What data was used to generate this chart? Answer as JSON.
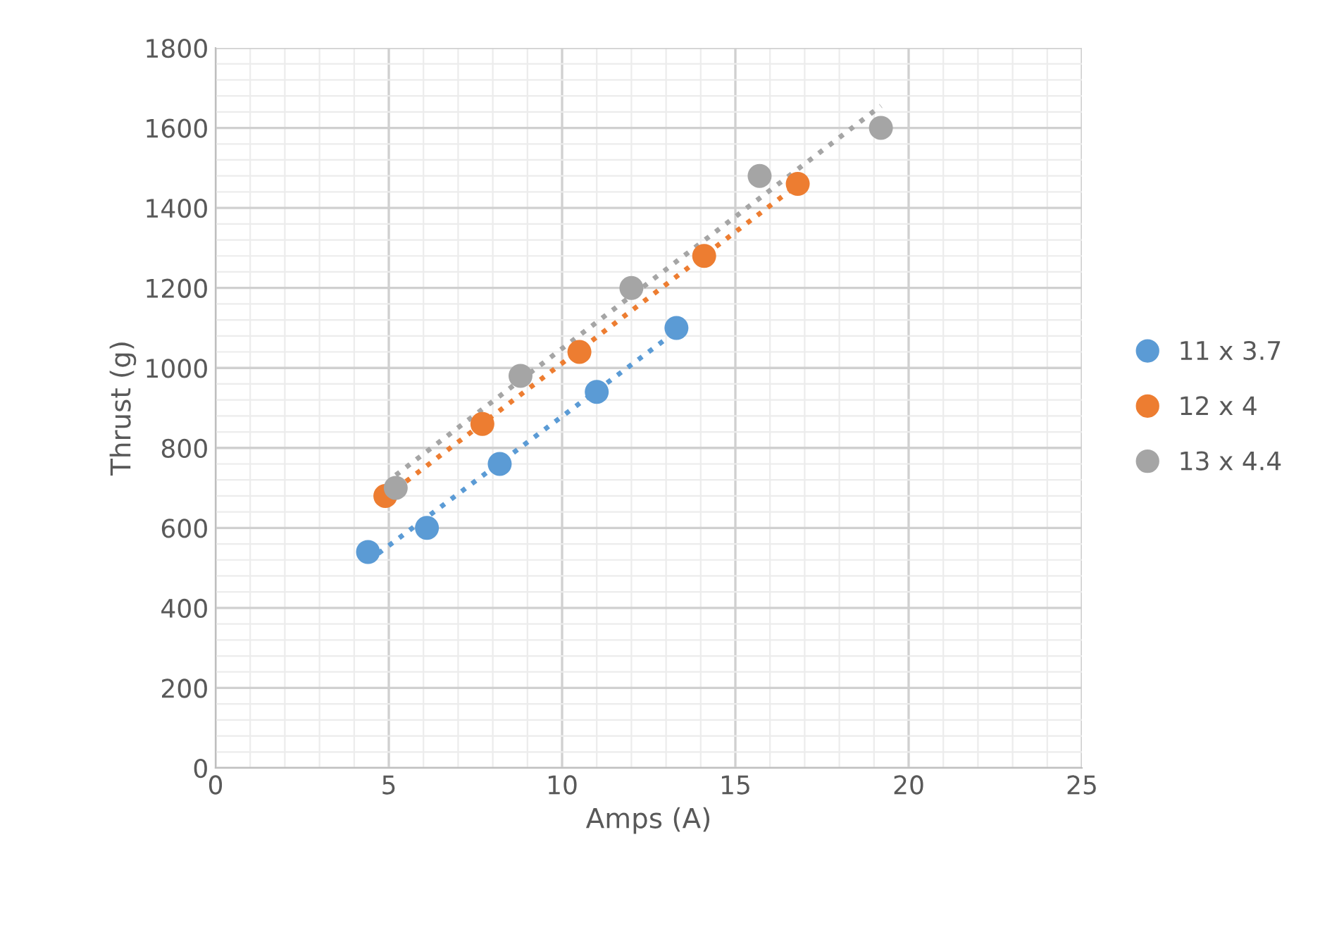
{
  "chart_data": {
    "type": "scatter",
    "xlabel": "Amps (A)",
    "ylabel": "Thrust (g)",
    "xlim": [
      0,
      25
    ],
    "xticks": [
      0,
      5,
      10,
      15,
      20,
      25
    ],
    "ylim": [
      0,
      1800
    ],
    "yticks": [
      0,
      200,
      400,
      600,
      800,
      1000,
      1200,
      1400,
      1600,
      1800
    ],
    "grid": true,
    "legend": "right",
    "marker": "circle",
    "series": [
      {
        "name": "11 x 3.7",
        "color": "#5b9bd5",
        "x": [
          4.4,
          6.1,
          8.2,
          11.0,
          13.3
        ],
        "values": [
          540,
          600,
          760,
          940,
          1100
        ]
      },
      {
        "name": "12 x 4",
        "color": "#ed7d31",
        "x": [
          4.9,
          7.7,
          10.5,
          14.1,
          16.8
        ],
        "values": [
          680,
          860,
          1040,
          1280,
          1460
        ]
      },
      {
        "name": "13 x 4.4",
        "color": "#a5a5a5",
        "x": [
          5.2,
          8.8,
          12.0,
          15.7,
          19.2
        ],
        "values": [
          700,
          980,
          1200,
          1480,
          1600
        ]
      },
      {
        "type": "line",
        "marker": "none",
        "line_style": "dotted",
        "color": "#5b9bd5",
        "x": [
          4.4,
          13.3
        ],
        "values": [
          517,
          1092
        ]
      },
      {
        "type": "line",
        "marker": "none",
        "line_style": "dotted",
        "color": "#ed7d31",
        "x": [
          4.9,
          16.8
        ],
        "values": [
          677,
          1458
        ]
      },
      {
        "type": "line",
        "marker": "none",
        "line_style": "dotted",
        "color": "#a5a5a5",
        "x": [
          5.2,
          19.2
        ],
        "values": [
          732,
          1655
        ]
      }
    ]
  }
}
